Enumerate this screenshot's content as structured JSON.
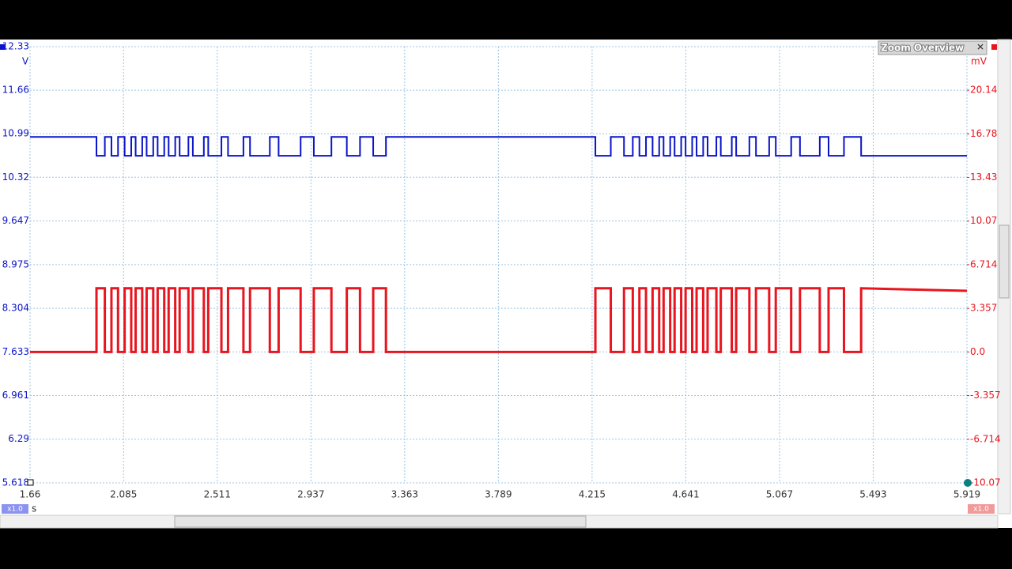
{
  "window_title": "Zoom Overview",
  "y_unit": "V",
  "y2_unit": "mV",
  "x_unit": "s",
  "zoom_labels": [
    "x1.0",
    "x1.0"
  ],
  "chart_data": {
    "type": "line",
    "x": [
      1.66,
      1.962,
      1.962,
      2.0,
      2.0,
      2.03,
      2.03,
      2.06,
      2.06,
      2.09,
      2.09,
      2.12,
      2.12,
      2.14,
      2.14,
      2.17,
      2.17,
      2.19,
      2.19,
      2.22,
      2.22,
      2.24,
      2.24,
      2.27,
      2.27,
      2.29,
      2.29,
      2.32,
      2.32,
      2.34,
      2.34,
      2.38,
      2.38,
      2.4,
      2.4,
      2.45,
      2.45,
      2.47,
      2.47,
      2.53,
      2.53,
      2.56,
      2.56,
      2.63,
      2.63,
      2.66,
      2.66,
      2.75,
      2.75,
      2.79,
      2.79,
      2.89,
      2.89,
      2.95,
      2.95,
      3.03,
      3.03,
      3.1,
      3.1,
      3.16,
      3.16,
      3.22,
      3.22,
      3.278,
      3.278,
      4.23,
      4.23,
      4.3,
      4.3,
      4.36,
      4.36,
      4.4,
      4.4,
      4.43,
      4.43,
      4.46,
      4.46,
      4.49,
      4.49,
      4.52,
      4.52,
      4.54,
      4.54,
      4.57,
      4.57,
      4.59,
      4.59,
      4.62,
      4.62,
      4.64,
      4.64,
      4.67,
      4.67,
      4.69,
      4.69,
      4.72,
      4.72,
      4.74,
      4.74,
      4.78,
      4.78,
      4.8,
      4.8,
      4.85,
      4.85,
      4.87,
      4.87,
      4.93,
      4.93,
      4.96,
      4.96,
      5.02,
      5.02,
      5.05,
      5.05,
      5.12,
      5.12,
      5.16,
      5.16,
      5.25,
      5.25,
      5.29,
      5.29,
      5.36,
      5.36,
      5.438,
      5.438,
      5.919
    ],
    "series": [
      {
        "color": "#0a14c8",
        "values": [
          10.94,
          10.94,
          10.65,
          10.65,
          10.94,
          10.94,
          10.65,
          10.65,
          10.94,
          10.94,
          10.65,
          10.65,
          10.94,
          10.94,
          10.65,
          10.65,
          10.94,
          10.94,
          10.65,
          10.65,
          10.94,
          10.94,
          10.65,
          10.65,
          10.94,
          10.94,
          10.65,
          10.65,
          10.94,
          10.94,
          10.65,
          10.65,
          10.94,
          10.94,
          10.65,
          10.65,
          10.94,
          10.94,
          10.65,
          10.65,
          10.94,
          10.94,
          10.65,
          10.65,
          10.94,
          10.94,
          10.65,
          10.65,
          10.94,
          10.94,
          10.65,
          10.65,
          10.94,
          10.94,
          10.65,
          10.65,
          10.94,
          10.94,
          10.65,
          10.65,
          10.94,
          10.94,
          10.65,
          10.65,
          10.94,
          10.94,
          10.65,
          10.65,
          10.94,
          10.94,
          10.65,
          10.65,
          10.94,
          10.94,
          10.65,
          10.65,
          10.94,
          10.94,
          10.65,
          10.65,
          10.94,
          10.94,
          10.65,
          10.65,
          10.94,
          10.94,
          10.65,
          10.65,
          10.94,
          10.94,
          10.65,
          10.65,
          10.94,
          10.94,
          10.65,
          10.65,
          10.94,
          10.94,
          10.65,
          10.65,
          10.94,
          10.94,
          10.65,
          10.65,
          10.94,
          10.94,
          10.65,
          10.65,
          10.94,
          10.94,
          10.65,
          10.65,
          10.94,
          10.94,
          10.65,
          10.65,
          10.94,
          10.94,
          10.65,
          10.65,
          10.94,
          10.94,
          10.65,
          10.65,
          10.94,
          10.94,
          10.65,
          10.65
        ]
      },
      {
        "color": "#e8141e",
        "axis": "y2",
        "values": [
          0,
          0,
          4.9,
          4.9,
          0,
          0,
          4.9,
          4.9,
          0,
          0,
          4.9,
          4.9,
          0,
          0,
          4.9,
          4.9,
          0,
          0,
          4.9,
          4.9,
          0,
          0,
          4.9,
          4.9,
          0,
          0,
          4.9,
          4.9,
          0,
          0,
          4.9,
          4.9,
          0,
          0,
          4.9,
          4.9,
          0,
          0,
          4.9,
          4.9,
          0,
          0,
          4.9,
          4.9,
          0,
          0,
          4.9,
          4.9,
          0,
          0,
          4.9,
          4.9,
          0,
          0,
          4.9,
          4.9,
          0,
          0,
          4.9,
          4.9,
          0,
          0,
          4.9,
          4.9,
          0,
          0,
          4.9,
          4.9,
          0,
          0,
          4.9,
          4.9,
          0,
          0,
          4.9,
          4.9,
          0,
          0,
          4.9,
          4.9,
          0,
          0,
          4.9,
          4.9,
          0,
          0,
          4.9,
          4.9,
          0,
          0,
          4.9,
          4.9,
          0,
          0,
          4.9,
          4.9,
          0,
          0,
          4.9,
          4.9,
          0,
          0,
          4.9,
          4.9,
          0,
          0,
          4.9,
          4.9,
          0,
          0,
          4.9,
          4.9,
          0,
          0,
          4.9,
          4.9,
          0,
          0,
          4.9,
          4.9,
          0,
          0,
          4.9,
          4.9,
          0,
          0,
          4.9,
          4.7
        ]
      }
    ],
    "xlim": [
      1.66,
      5.919
    ],
    "xticks": [
      1.66,
      2.085,
      2.511,
      2.937,
      3.363,
      3.789,
      4.215,
      4.641,
      5.067,
      5.493,
      5.919
    ],
    "ylim": [
      5.618,
      12.33
    ],
    "yticks": [
      5.618,
      6.29,
      6.961,
      7.633,
      8.304,
      8.975,
      9.647,
      10.32,
      10.99,
      11.66,
      12.33
    ],
    "y2lim": [
      -10.07,
      23.49
    ],
    "y2ticks": [
      -10.07,
      -6.714,
      -3.357,
      {
        "value": 0,
        "label": "0.0"
      },
      3.357,
      6.714,
      10.07,
      13.43,
      16.78,
      20.14
    ],
    "grid": true
  }
}
